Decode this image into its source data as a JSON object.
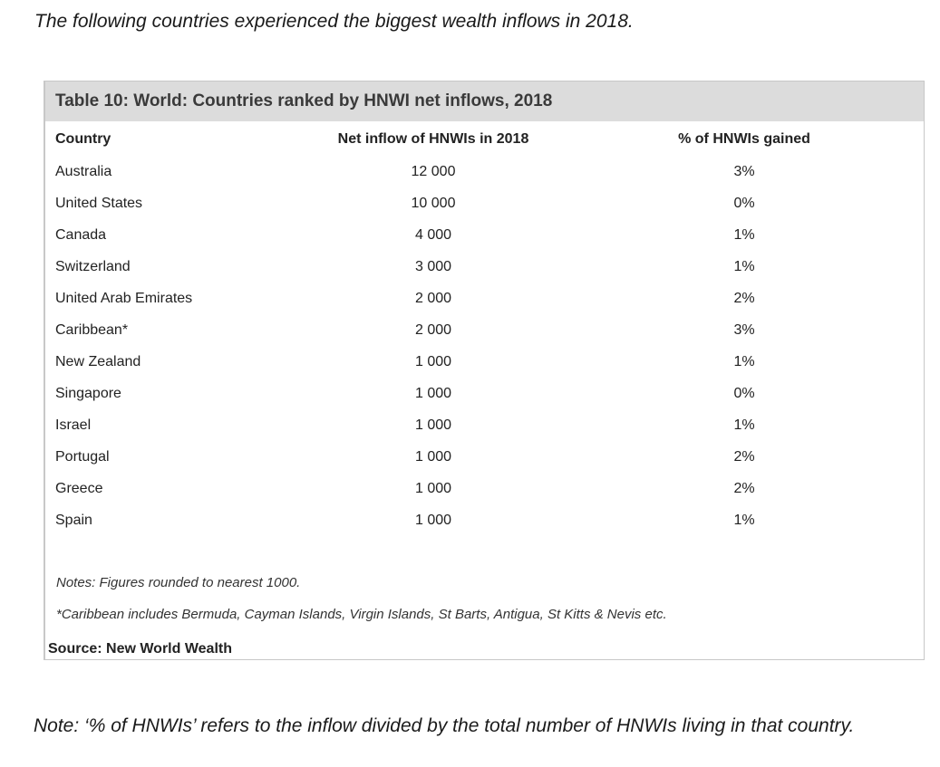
{
  "intro": "The following countries experienced the biggest wealth inflows in 2018.",
  "table": {
    "title": "Table 10: World: Countries ranked by HNWI net inflows, 2018",
    "headers": {
      "country": "Country",
      "inflow": "Net inflow of HNWIs in 2018",
      "pct": "% of HNWIs gained"
    },
    "rows": [
      {
        "country": "Australia",
        "inflow": "12 000",
        "pct": "3%"
      },
      {
        "country": "United States",
        "inflow": "10 000",
        "pct": "0%"
      },
      {
        "country": "Canada",
        "inflow": "4 000",
        "pct": "1%"
      },
      {
        "country": "Switzerland",
        "inflow": "3 000",
        "pct": "1%"
      },
      {
        "country": "United Arab Emirates",
        "inflow": "2 000",
        "pct": "2%"
      },
      {
        "country": "Caribbean*",
        "inflow": "2 000",
        "pct": "3%"
      },
      {
        "country": "New Zealand",
        "inflow": "1 000",
        "pct": "1%"
      },
      {
        "country": "Singapore",
        "inflow": "1 000",
        "pct": "0%"
      },
      {
        "country": "Israel",
        "inflow": "1 000",
        "pct": "1%"
      },
      {
        "country": "Portugal",
        "inflow": "1 000",
        "pct": "2%"
      },
      {
        "country": "Greece",
        "inflow": "1 000",
        "pct": "2%"
      },
      {
        "country": "Spain",
        "inflow": "1 000",
        "pct": "1%"
      }
    ],
    "notes": [
      "Notes: Figures rounded to nearest 1000.",
      "*Caribbean includes Bermuda, Cayman Islands, Virgin Islands, St Barts, Antigua, St Kitts & Nevis etc."
    ],
    "source": "Source: New World Wealth"
  },
  "footnote": "Note: ‘% of HNWIs’ refers to the inflow divided by the total number of HNWIs living in that country."
}
